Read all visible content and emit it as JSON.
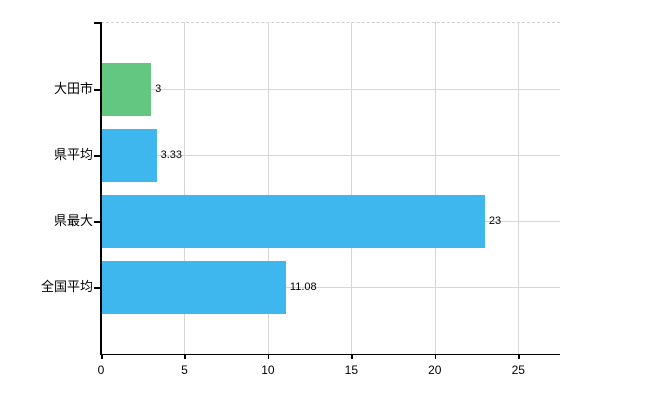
{
  "chart_data": {
    "type": "bar",
    "orientation": "horizontal",
    "categories": [
      "大田市",
      "県平均",
      "県最大",
      "全国平均"
    ],
    "values": [
      3,
      3.33,
      23,
      11.08
    ],
    "value_labels": [
      "3",
      "3.33",
      "23",
      "11.08"
    ],
    "bar_colors": [
      "#63C781",
      "#3EB7EF",
      "#3EB7EF",
      "#3EB7EF"
    ],
    "x_tick_labels": [
      "0",
      "5",
      "10",
      "15",
      "20",
      "25"
    ],
    "x_tick_values": [
      0,
      5,
      10,
      15,
      20,
      25
    ],
    "xlim": [
      0,
      27.5
    ],
    "grid": true,
    "legend_position": "none",
    "plot_border_top_style": "dashed"
  },
  "colors": {
    "bar_green": "#63C781",
    "bar_blue": "#3EB7EF",
    "gridline": "#D6D6D6",
    "axis": "#000000",
    "text": "#000000",
    "background": "#FFFFFF"
  }
}
